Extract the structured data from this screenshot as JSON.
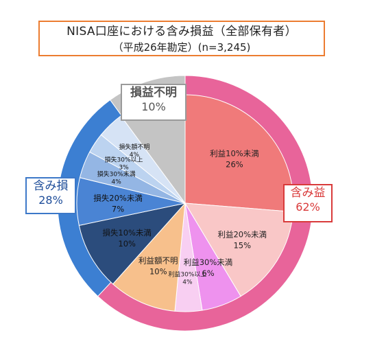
{
  "title": {
    "line1": "NISA口座における含み損益（全部保有者）",
    "line2": "（平成26年勘定）(n=3,245)"
  },
  "colors": {
    "outer_gain": "#e8649a",
    "outer_loss": "#3c7fd2",
    "outer_unknown": "#c4c4c4",
    "callout_gain_border": "#d93a3a",
    "callout_loss_border": "#3c78c8"
  },
  "chart_data": {
    "type": "pie",
    "inner": [
      {
        "label": "利益10%未満",
        "value": 26,
        "value_text": "26%",
        "color": "#f07a7a",
        "text_color": "#222"
      },
      {
        "label": "利益20%未満",
        "value": 15,
        "value_text": "15%",
        "color": "#f9c7c7",
        "text_color": "#222"
      },
      {
        "label": "利益30%未満",
        "value": 6,
        "value_text": "6%",
        "color": "#ee92ee",
        "text_color": "#222"
      },
      {
        "label": "利益30%以上",
        "value": 4,
        "value_text": "4%",
        "color": "#f8cff2",
        "text_color": "#222"
      },
      {
        "label": "利益額不明",
        "value": 10,
        "value_text": "10%",
        "color": "#f7c08c",
        "text_color": "#222"
      },
      {
        "label": "損失10%未満",
        "value": 10,
        "value_text": "10%",
        "color": "#2b4c7c",
        "text_color": "#111"
      },
      {
        "label": "損失20%未満",
        "value": 7,
        "value_text": "7%",
        "color": "#4a84d4",
        "text_color": "#111"
      },
      {
        "label": "損失30%未満",
        "value": 4,
        "value_text": "4%",
        "color": "#94b6e4",
        "text_color": "#111"
      },
      {
        "label": "損失30%以上",
        "value": 3,
        "value_text": "3%",
        "color": "#bcd3f0",
        "text_color": "#111"
      },
      {
        "label": "損失額不明",
        "value": 4,
        "value_text": "4%",
        "color": "#d6e3f5",
        "text_color": "#111"
      },
      {
        "label": "",
        "value": 10,
        "value_text": "",
        "color": "#c4c4c4",
        "text_color": "#111"
      }
    ],
    "outer": [
      {
        "label": "含み益",
        "value": 62,
        "value_text": "62%"
      },
      {
        "label": "含み損",
        "value": 28,
        "value_text": "28%"
      },
      {
        "label": "損益不明",
        "value": 10,
        "value_text": "10%"
      }
    ]
  }
}
